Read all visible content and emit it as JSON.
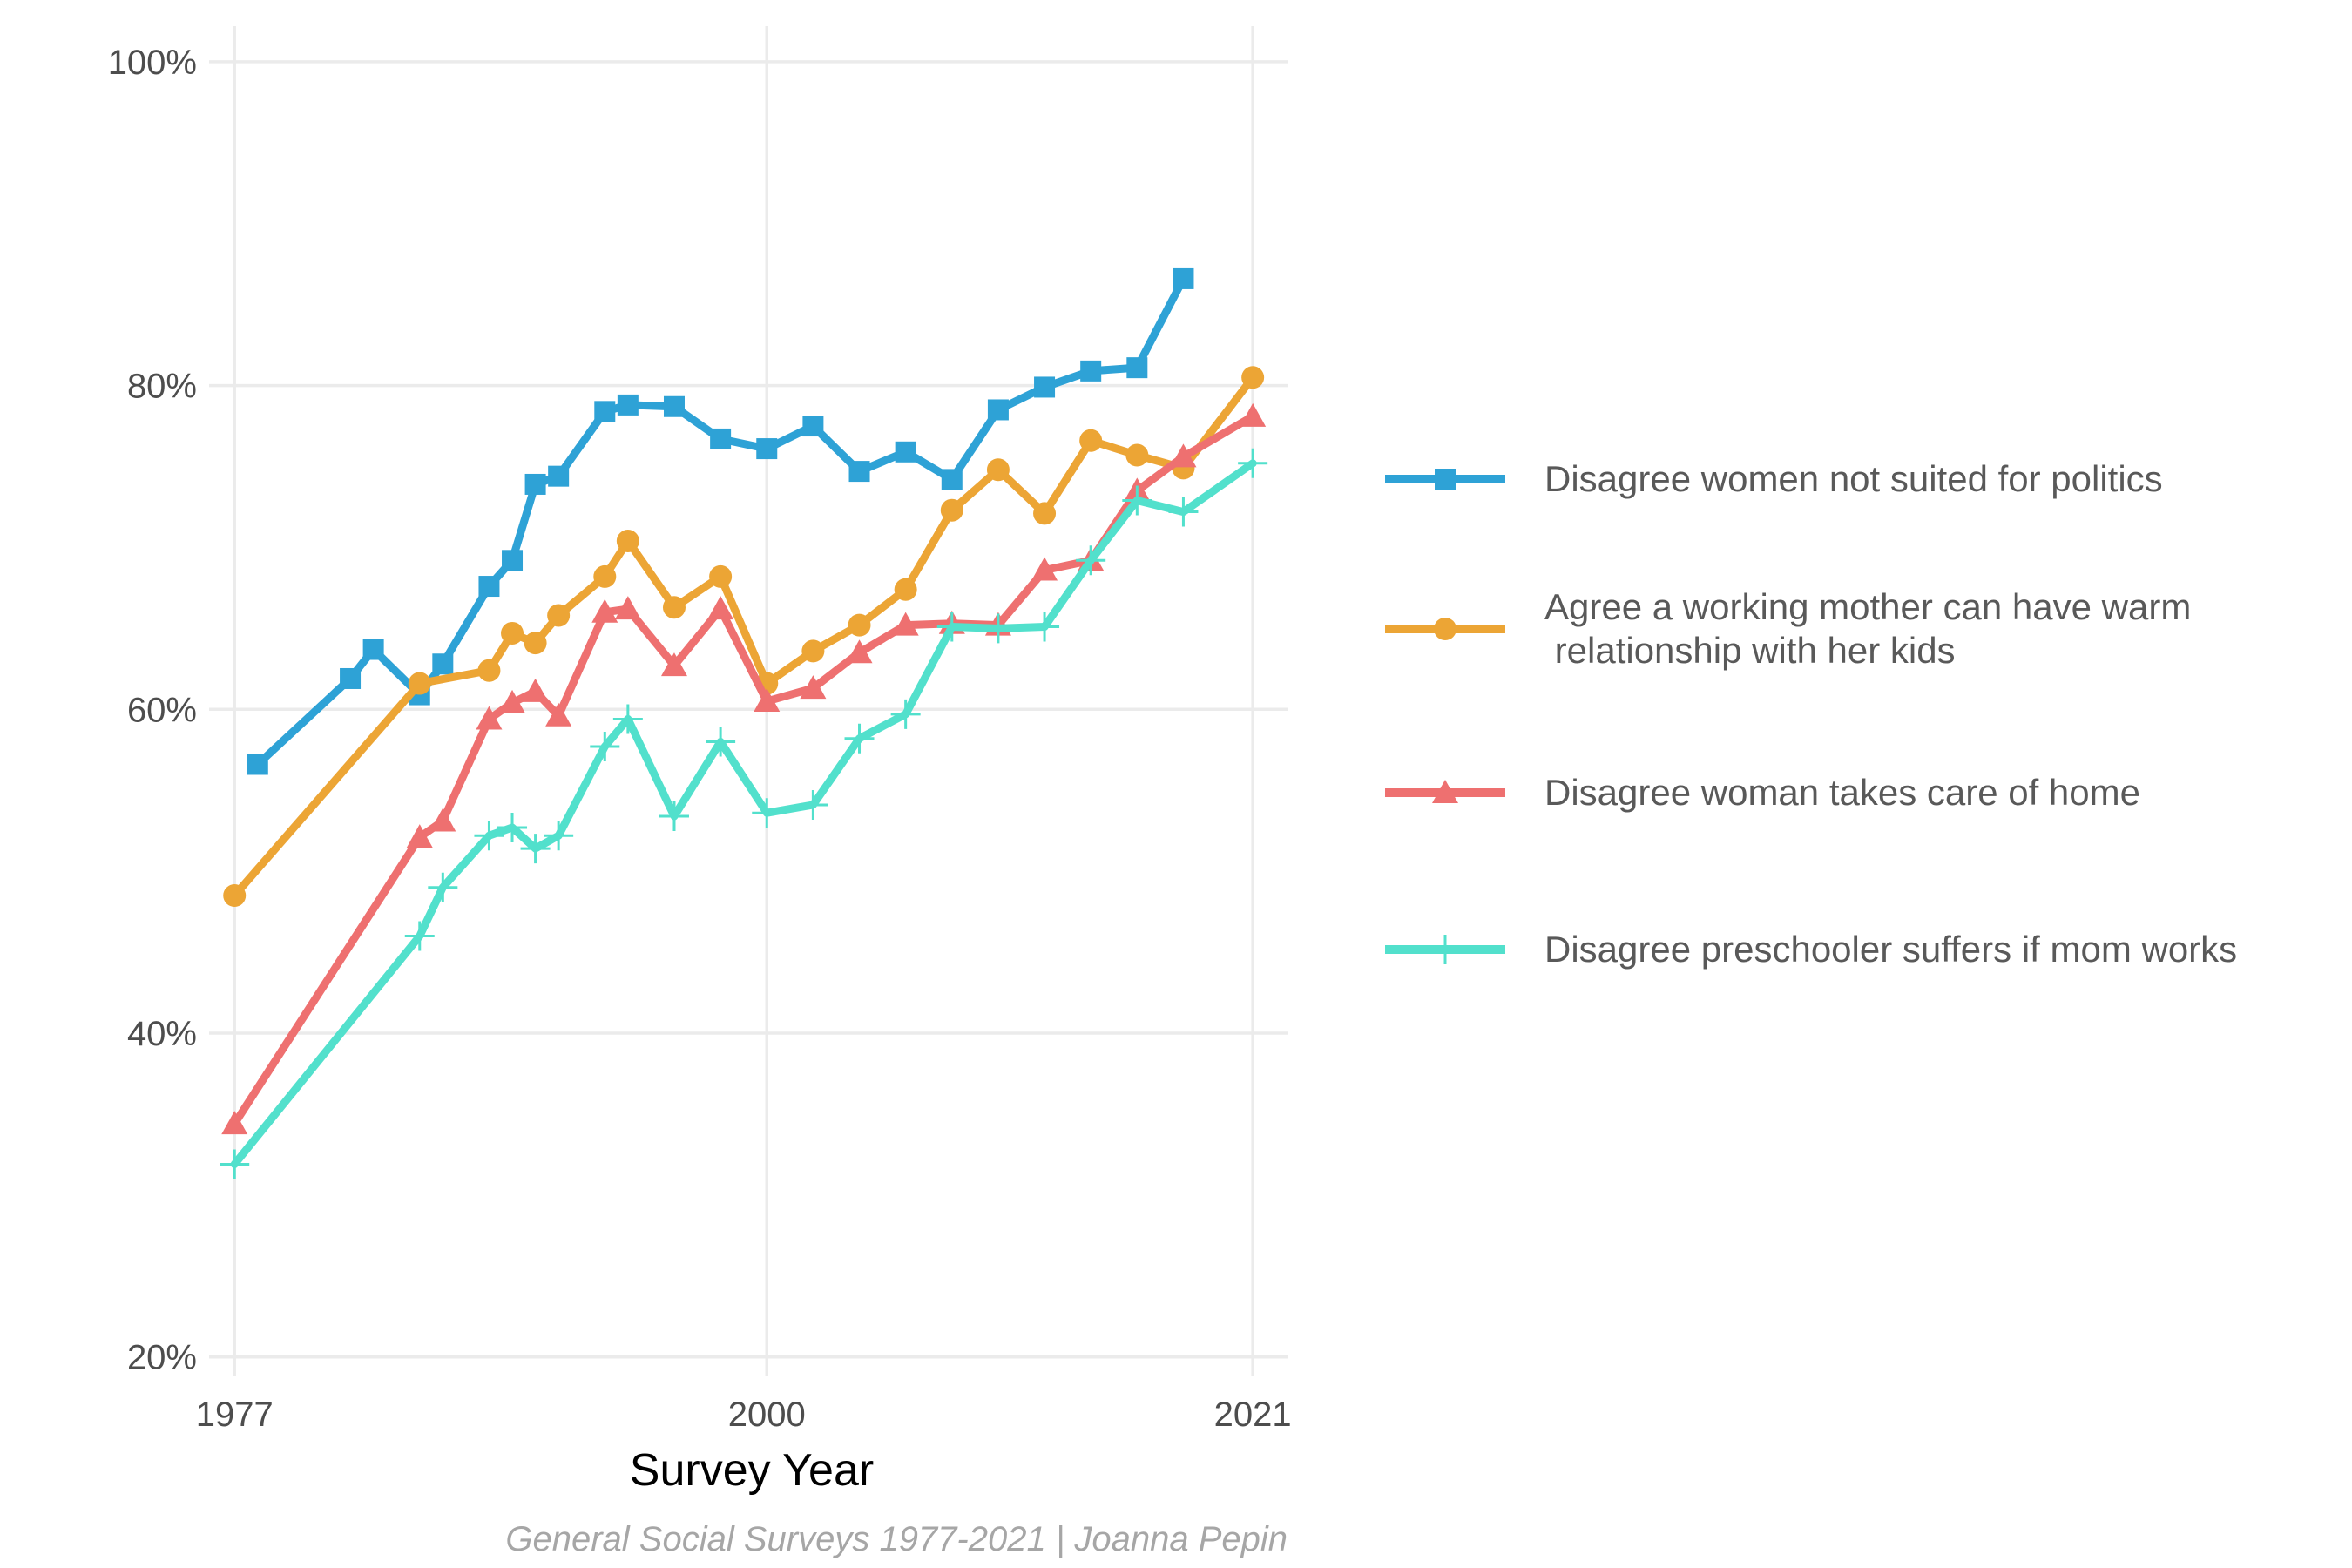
{
  "chart_data": {
    "type": "line",
    "title": "",
    "xlabel": "Survey Year",
    "ylabel": "",
    "caption": "General Social Surveys 1977-2021 | Joanna Pepin",
    "xlim": [
      1975.9,
      2022.5
    ],
    "ylim": [
      18.8,
      102.2
    ],
    "x_ticks": [
      1977,
      2000,
      2021
    ],
    "x_tick_labels": [
      "1977",
      "2000",
      "2021"
    ],
    "y_ticks": [
      20,
      40,
      60,
      80,
      100
    ],
    "y_tick_labels": [
      "20%",
      "40%",
      "60%",
      "80%",
      "100%"
    ],
    "grid": true,
    "legend_position": "right",
    "series": [
      {
        "name": "Disagree women not suited for politics",
        "color": "#2EA2D6",
        "marker": "square",
        "x": [
          1978,
          1982,
          1983,
          1985,
          1986,
          1988,
          1989,
          1990,
          1991,
          1993,
          1994,
          1996,
          1998,
          2000,
          2002,
          2004,
          2006,
          2008,
          2010,
          2012,
          2014,
          2016,
          2018
        ],
        "y": [
          56.6,
          61.9,
          63.7,
          60.9,
          62.8,
          67.6,
          69.2,
          73.9,
          74.4,
          78.4,
          78.8,
          78.7,
          76.7,
          76.1,
          77.5,
          74.7,
          75.9,
          74.2,
          78.5,
          79.9,
          80.9,
          81.1,
          86.6
        ]
      },
      {
        "name": "Agree a working mother can have warm\n relationship with her kids",
        "color": "#ECA535",
        "marker": "circle",
        "x": [
          1977,
          1985,
          1988,
          1989,
          1990,
          1991,
          1993,
          1994,
          1996,
          1998,
          2000,
          2002,
          2004,
          2006,
          2008,
          2010,
          2012,
          2014,
          2016,
          2018,
          2021
        ],
        "y": [
          48.5,
          61.6,
          62.4,
          64.7,
          64.1,
          65.8,
          68.2,
          70.4,
          66.3,
          68.2,
          61.6,
          63.6,
          65.2,
          67.4,
          72.3,
          74.8,
          72.1,
          76.6,
          75.7,
          74.9,
          80.5
        ]
      },
      {
        "name": "Disagree woman takes care of home",
        "color": "#EE7070",
        "marker": "triangle",
        "x": [
          1977,
          1985,
          1986,
          1988,
          1989,
          1990,
          1991,
          1993,
          1994,
          1996,
          1998,
          2000,
          2002,
          2004,
          2006,
          2008,
          2010,
          2012,
          2014,
          2016,
          2018,
          2021
        ],
        "y": [
          34.4,
          52.1,
          53.1,
          59.4,
          60.4,
          61.1,
          59.6,
          66.0,
          66.2,
          62.7,
          66.2,
          60.5,
          61.3,
          63.5,
          65.2,
          65.3,
          65.2,
          68.6,
          69.2,
          73.5,
          75.6,
          78.1
        ]
      },
      {
        "name": "Disagree preschooler suffers if mom works",
        "color": "#52E0CC",
        "marker": "plus",
        "x": [
          1977,
          1985,
          1986,
          1988,
          1989,
          1990,
          1991,
          1993,
          1994,
          1996,
          1998,
          2000,
          2002,
          2004,
          2006,
          2008,
          2010,
          2012,
          2014,
          2016,
          2018,
          2021
        ],
        "y": [
          31.9,
          46.0,
          49.0,
          52.2,
          52.7,
          51.4,
          52.2,
          57.7,
          59.4,
          53.4,
          58.0,
          53.6,
          54.1,
          58.2,
          59.7,
          65.1,
          65.0,
          65.1,
          69.2,
          72.9,
          72.2,
          75.2
        ]
      }
    ]
  }
}
